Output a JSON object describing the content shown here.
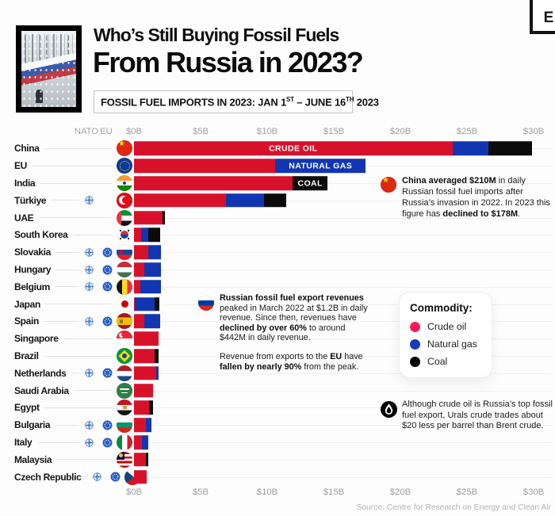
{
  "brand": {
    "logo_letter": "E"
  },
  "header": {
    "title_line1": "Who’s Still Buying Fossil Fuels",
    "title_line2": "From Russia in 2023?",
    "subtitle": {
      "p1": "FOSSIL FUEL IMPORTS IN 2023: JAN 1",
      "s1": "ST",
      "p2": " – JUNE 16",
      "s2": "TH",
      "p3": " 2023"
    }
  },
  "columns": {
    "nato": "NATO",
    "eu": "EU"
  },
  "chart_data": {
    "type": "bar",
    "orientation": "horizontal",
    "stacked": true,
    "unit": "billion USD",
    "xlim": [
      0,
      30
    ],
    "x_ticks": [
      "$0B",
      "$5B",
      "$10B",
      "$15B",
      "$20B",
      "$25B",
      "$30B"
    ],
    "x_tick_values": [
      0,
      5,
      10,
      15,
      20,
      25,
      30
    ],
    "categories": [
      "China",
      "EU",
      "India",
      "Türkiye",
      "UAE",
      "South Korea",
      "Slovakia",
      "Hungary",
      "Belgium",
      "Japan",
      "Spain",
      "Singapore",
      "Brazil",
      "Netherlands",
      "Saudi Arabia",
      "Egypt",
      "Bulgaria",
      "Italy",
      "Malaysia",
      "Czech Republic"
    ],
    "flags": [
      "china",
      "eu",
      "india",
      "turkiye",
      "uae",
      "south-korea",
      "slovakia",
      "hungary",
      "belgium",
      "japan",
      "spain",
      "singapore",
      "brazil",
      "netherlands",
      "saudi-arabia",
      "egypt",
      "bulgaria",
      "italy",
      "malaysia",
      "czech-republic"
    ],
    "memberships": {
      "nato": [
        "Türkiye",
        "Slovakia",
        "Hungary",
        "Belgium",
        "Spain",
        "Netherlands",
        "Bulgaria",
        "Italy",
        "Czech Republic"
      ],
      "eu": [
        "Slovakia",
        "Hungary",
        "Belgium",
        "Spain",
        "Netherlands",
        "Bulgaria",
        "Italy",
        "Czech Republic"
      ]
    },
    "series": [
      {
        "name": "Crude oil",
        "key": "crude",
        "color": "#d8112b",
        "values": [
          23.9,
          10.6,
          11.9,
          6.9,
          2.15,
          0.55,
          1.05,
          0.75,
          0.45,
          0.05,
          0.8,
          1.85,
          1.55,
          1.65,
          1.45,
          1.15,
          0.9,
          0.6,
          0.9,
          0.95
        ]
      },
      {
        "name": "Natural gas",
        "key": "gas",
        "color": "#1236b2",
        "values": [
          2.7,
          6.8,
          0,
          2.85,
          0,
          0.5,
          1.0,
          1.3,
          1.6,
          1.5,
          1.15,
          0,
          0,
          0.2,
          0,
          0,
          0.4,
          0.5,
          0,
          0
        ]
      },
      {
        "name": "Coal",
        "key": "coal",
        "color": "#0b0b0b",
        "values": [
          3.3,
          0,
          2.65,
          1.65,
          0.15,
          0.9,
          0,
          0,
          0,
          0.35,
          0,
          0,
          0.3,
          0,
          0,
          0.25,
          0,
          0,
          0.15,
          0
        ]
      }
    ],
    "segment_labels": [
      {
        "row": 0,
        "series": "crude",
        "text": "CRUDE OIL"
      },
      {
        "row": 1,
        "series": "gas",
        "text": "NATURAL GAS"
      },
      {
        "row": 2,
        "series": "coal",
        "text": "COAL"
      }
    ]
  },
  "legend": {
    "title": "Commodity:",
    "entries": [
      {
        "label": "Crude oil",
        "color": "#fb1b5d"
      },
      {
        "label": "Natural gas",
        "color": "#1a3ab8"
      },
      {
        "label": "Coal",
        "color": "#000000"
      }
    ]
  },
  "annotations": {
    "china": {
      "icon": "china-flag",
      "parts": [
        {
          "b": "China averaged $210M"
        },
        {
          "t": " in daily Russian fossil fuel imports after Russia’s invasion in 2022. In 2023 this figure has "
        },
        {
          "b": "declined to $178M"
        },
        {
          "t": "."
        }
      ]
    },
    "russia": {
      "icon": "russia-flag",
      "paragraphs": [
        [
          {
            "b": "Russian fossil fuel export revenues"
          },
          {
            "t": " peaked in March 2022 at $1.2B in daily revenue. Since then, revenues have "
          },
          {
            "b": "declined by over 60%"
          },
          {
            "t": " to around $442M in daily revenue."
          }
        ],
        [
          {
            "t": "Revenue from exports to the "
          },
          {
            "b": "EU"
          },
          {
            "t": " have "
          },
          {
            "b": "fallen by nearly 90%"
          },
          {
            "t": " from the peak."
          }
        ]
      ]
    },
    "oil": {
      "icon": "oil-drop",
      "parts": [
        {
          "t": "Although crude oil is Russia’s top fossil fuel export, Urals crude trades about $20 less per barrel than Brent crude."
        }
      ]
    }
  },
  "footer": {
    "source": "Source: Centre for Research on Energy and Clean Air"
  }
}
